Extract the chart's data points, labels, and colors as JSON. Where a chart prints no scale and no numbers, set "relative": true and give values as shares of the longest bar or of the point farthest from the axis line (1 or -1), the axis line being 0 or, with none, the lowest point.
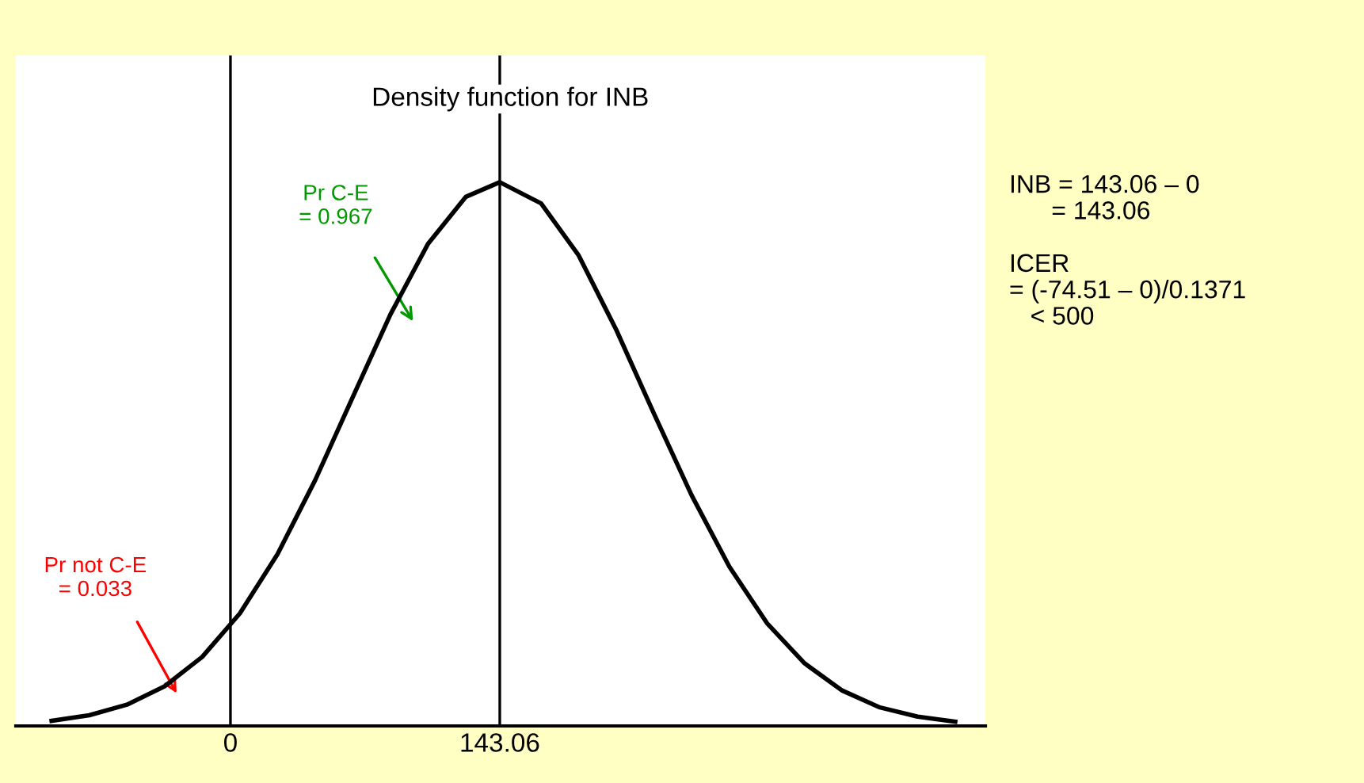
{
  "chart_data": {
    "type": "line",
    "title": "Density function for INB",
    "relative": true,
    "x": [
      -95,
      -75,
      -55,
      -35,
      -15,
      5,
      25,
      45,
      65,
      85,
      105,
      125,
      143.06,
      165,
      185,
      205,
      225,
      245,
      265,
      285,
      305,
      325,
      345,
      365,
      385
    ],
    "series": [
      {
        "color": "#000000",
        "values": [
          0.0093,
          0.0197,
          0.0391,
          0.0729,
          0.127,
          0.207,
          0.316,
          0.452,
          0.605,
          0.757,
          0.887,
          0.973,
          1,
          0.961,
          0.865,
          0.728,
          0.574,
          0.424,
          0.293,
          0.189,
          0.115,
          0.065,
          0.034,
          0.0171,
          0.0079
        ]
      }
    ],
    "xlim": [
      -114,
      401
    ],
    "xticks": [
      0,
      143.06
    ],
    "ref_lines": [
      {
        "axis": "x",
        "value": 0,
        "color": "#000000"
      },
      {
        "axis": "x",
        "value": 143.06,
        "color": "#000000"
      }
    ],
    "annotations": [
      "Pr C-E\n= 0.967",
      "Pr not C-E\n= 0.033",
      "INB = 143.06 – 0\n      = 143.06\n\nICER\n= (-74.51 – 0)/0.1371\n   < 500"
    ],
    "grid": false,
    "marker": "none",
    "line_style": "solid"
  }
}
